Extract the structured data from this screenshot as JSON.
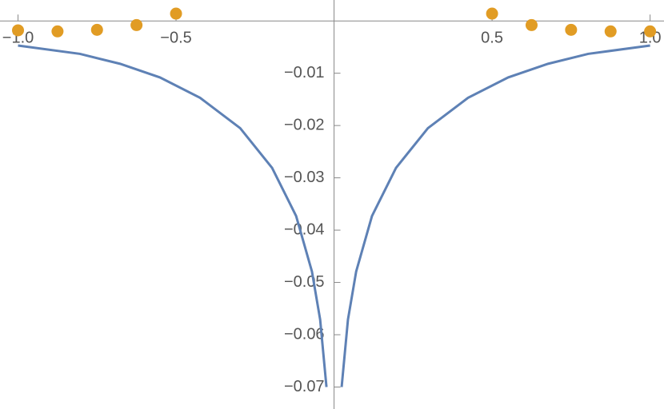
{
  "chart_data": {
    "type": "line",
    "xlim": [
      -1.057,
      1.044
    ],
    "ylim": [
      -0.0742,
      0.004
    ],
    "xticks": [
      {
        "value": -1.0,
        "label": "−1.0"
      },
      {
        "value": -0.5,
        "label": "−0.5"
      },
      {
        "value": 0.5,
        "label": "0.5"
      },
      {
        "value": 1.0,
        "label": "1.0"
      }
    ],
    "yticks": [
      {
        "value": -0.01,
        "label": "−0.01"
      },
      {
        "value": -0.02,
        "label": "−0.02"
      },
      {
        "value": -0.03,
        "label": "−0.03"
      },
      {
        "value": -0.04,
        "label": "−0.04"
      },
      {
        "value": -0.05,
        "label": "−0.05"
      },
      {
        "value": -0.06,
        "label": "−0.06"
      },
      {
        "value": -0.07,
        "label": "−0.07"
      }
    ],
    "series": [
      {
        "type": "line",
        "color": "#5e81b5",
        "x": [
          -1.0,
          -0.804,
          -0.677,
          -0.551,
          -0.424,
          -0.297,
          -0.196,
          -0.12,
          -0.07,
          -0.044,
          -0.024,
          null,
          0.024,
          0.044,
          0.07,
          0.12,
          0.196,
          0.297,
          0.424,
          0.551,
          0.677,
          0.804,
          1.0
        ],
        "values": [
          -0.0047,
          -0.0063,
          -0.0082,
          -0.0108,
          -0.0147,
          -0.0205,
          -0.0281,
          -0.0373,
          -0.0479,
          -0.0571,
          -0.07,
          null,
          -0.07,
          -0.0571,
          -0.0479,
          -0.0373,
          -0.0281,
          -0.0205,
          -0.0147,
          -0.0108,
          -0.0082,
          -0.0063,
          -0.0047
        ]
      },
      {
        "type": "scatter",
        "color": "#e19c24",
        "x": [
          -1.0,
          -0.875,
          -0.75,
          -0.625,
          -0.5,
          0.5,
          0.625,
          0.75,
          0.875,
          1.0
        ],
        "values": [
          -0.0018,
          -0.002,
          -0.0017,
          -0.0008,
          0.0014,
          0.0014,
          -0.0008,
          -0.0017,
          -0.002,
          -0.002
        ]
      }
    ]
  }
}
